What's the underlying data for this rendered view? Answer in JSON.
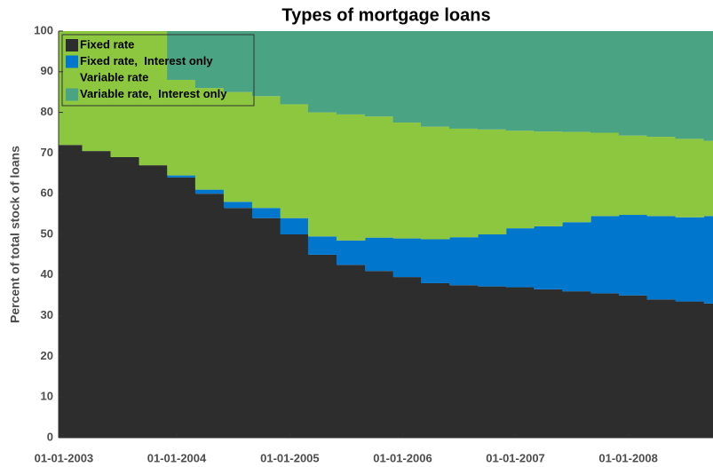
{
  "chart_data": {
    "type": "stacked-step-area",
    "title": "Types of mortgage loans",
    "y_label": "Percent of total stock of loans",
    "x": [
      "2002-12-15",
      "2003-03-01",
      "2003-06-01",
      "2003-09-01",
      "2003-12-01",
      "2004-03-01",
      "2004-06-01",
      "2004-09-01",
      "2004-12-01",
      "2005-03-01",
      "2005-06-01",
      "2005-09-01",
      "2005-12-01",
      "2006-03-01",
      "2006-06-01",
      "2006-09-01",
      "2006-12-01",
      "2007-03-01",
      "2007-06-01",
      "2007-09-01",
      "2007-12-01",
      "2008-03-01",
      "2008-06-01",
      "2008-09-01"
    ],
    "series": [
      {
        "name": "Fixed rate",
        "color": "#2d2d2d",
        "values": [
          72,
          70.5,
          69,
          67,
          64,
          60,
          56.5,
          54,
          50,
          45,
          42.5,
          41,
          39.5,
          38,
          37.5,
          37.2,
          37,
          36.5,
          36,
          35.5,
          35,
          34,
          33.5,
          33
        ]
      },
      {
        "name": "Fixed rate,  Interest only",
        "color": "#0077cc",
        "values": [
          0,
          0,
          0,
          0,
          0.5,
          1,
          1.5,
          2.5,
          4,
          4.5,
          6,
          8.2,
          9.5,
          10.8,
          11.8,
          12.8,
          14.5,
          15.5,
          17,
          19,
          19.8,
          20.5,
          20.7,
          21.5
        ]
      },
      {
        "name": "Variable rate",
        "color": "#8dc63f",
        "values": [
          28,
          29.5,
          31,
          33,
          23.5,
          25,
          27,
          27.5,
          28,
          30.5,
          31,
          29.8,
          28.5,
          27.7,
          26.7,
          25.8,
          24,
          23.3,
          22.2,
          20.5,
          19.5,
          19.5,
          19.3,
          18.5
        ]
      },
      {
        "name": "Variable rate,  Interest only",
        "color": "#4aa383",
        "values": [
          0,
          0,
          0,
          0,
          12,
          14,
          15,
          16,
          18,
          20,
          20.5,
          21,
          22.5,
          23.5,
          24,
          24.2,
          24.5,
          24.7,
          24.8,
          25,
          25.7,
          26,
          26.5,
          27
        ]
      }
    ],
    "xlim": [
      "2002-12-15",
      "2008-10-01"
    ],
    "xticks": [
      {
        "value": "2003-01-01",
        "label": "01-01-2003"
      },
      {
        "value": "2004-01-01",
        "label": "01-01-2004"
      },
      {
        "value": "2005-01-01",
        "label": "01-01-2005"
      },
      {
        "value": "2006-01-01",
        "label": "01-01-2006"
      },
      {
        "value": "2007-01-01",
        "label": "01-01-2007"
      },
      {
        "value": "2008-01-01",
        "label": "01-01-2008"
      }
    ],
    "ylim": [
      0,
      100
    ],
    "yticks": [
      0,
      10,
      20,
      30,
      40,
      50,
      60,
      70,
      80,
      90,
      100
    ],
    "legend": "top-left"
  }
}
